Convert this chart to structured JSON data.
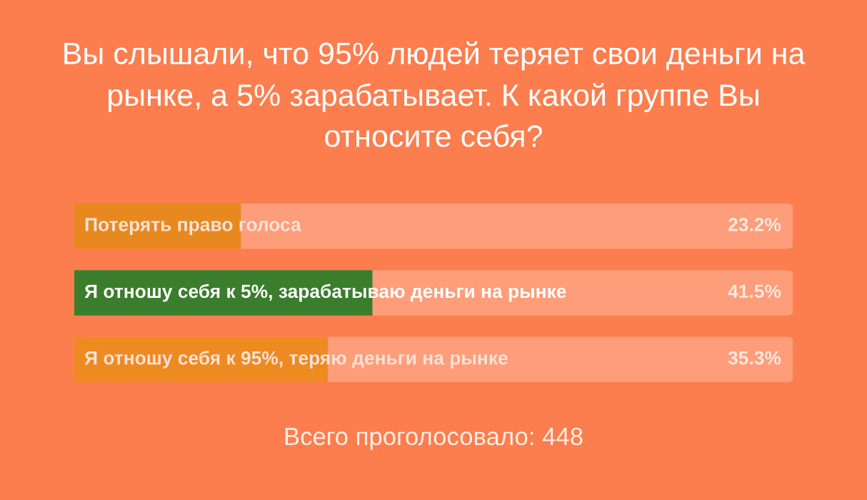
{
  "chart_data": {
    "type": "bar",
    "orientation": "horizontal",
    "title": "Вы слышали, что 95% людей теряет свои деньги на\nрынке, а 5% зарабатывает. К какой группе Вы\nотносите себя?",
    "categories": [
      "Потерять право голоса",
      "Я отношу себя к 5%, зарабатываю деньги на рынке",
      "Я отношу себя к 95%, теряю деньги на рынке"
    ],
    "values": [
      23.2,
      41.5,
      35.3
    ],
    "colors": [
      "#e8891f",
      "#3a7d2c",
      "#ee8a22"
    ],
    "value_labels": [
      "23.2%",
      "41.5%",
      "35.3%"
    ],
    "xlim": [
      0,
      100
    ],
    "annotations": [
      "Всего проголосовало: 448"
    ]
  }
}
